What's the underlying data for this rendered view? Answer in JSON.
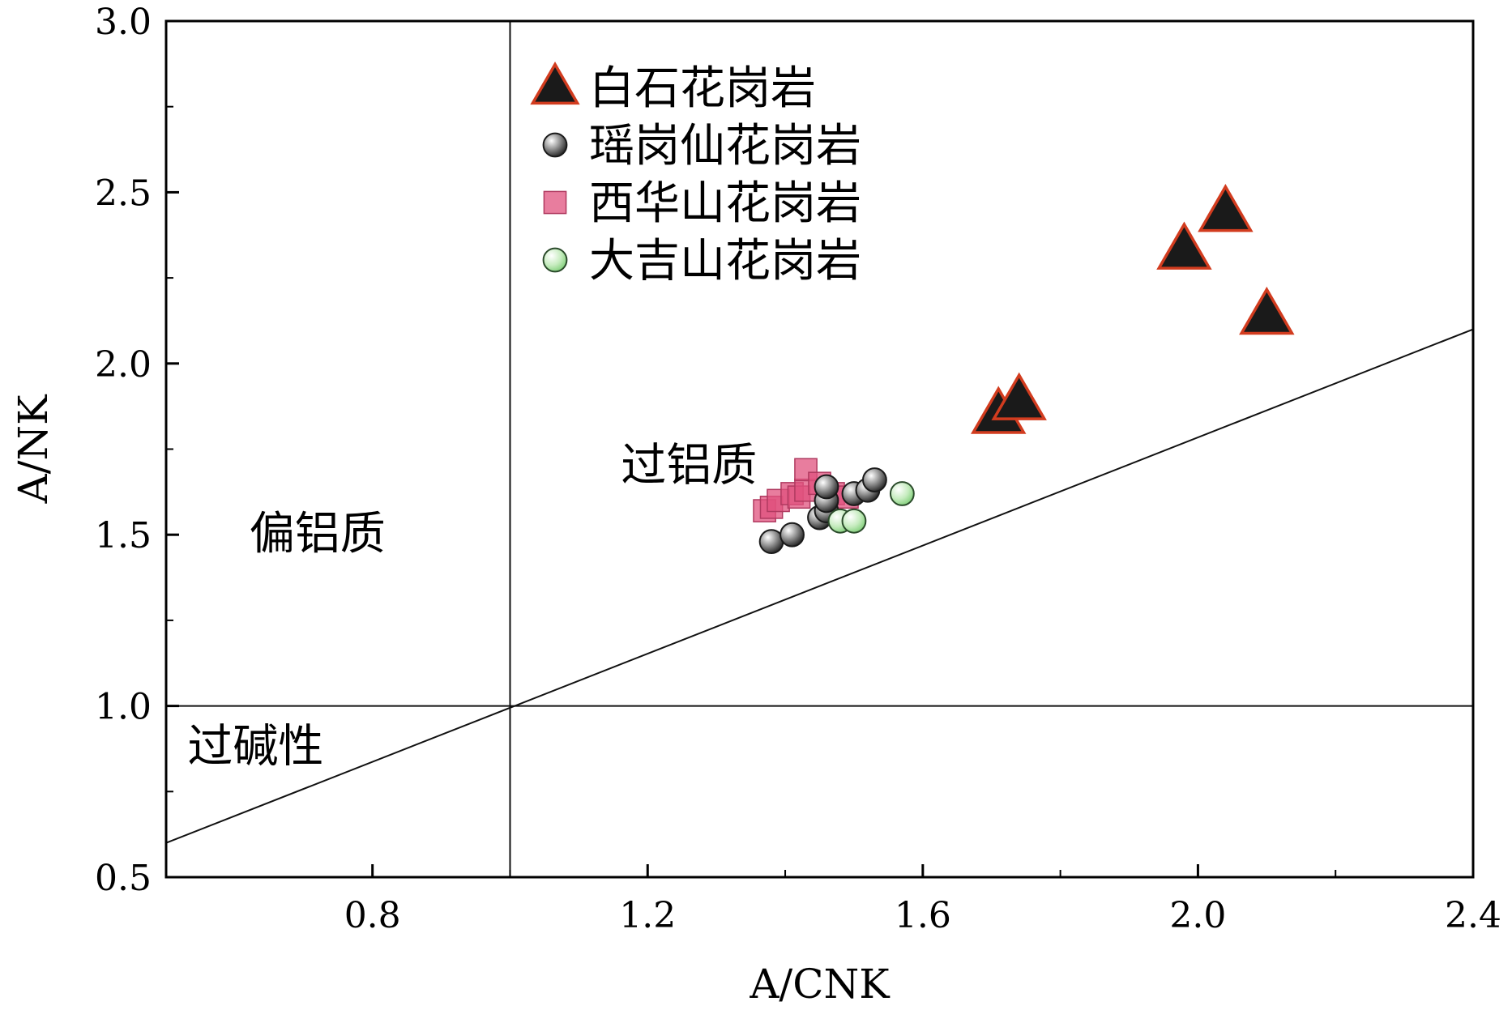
{
  "chart_data": {
    "type": "scatter",
    "title": "",
    "xlabel": "A/CNK",
    "ylabel": "A/NK",
    "xlim": [
      0.5,
      2.4
    ],
    "ylim": [
      0.5,
      3.0
    ],
    "x_ticks": [
      0.8,
      1.2,
      1.6,
      2.0,
      2.4
    ],
    "x_tick_labels": [
      "0.8",
      "1.2",
      "1.6",
      "2.0",
      "2.4"
    ],
    "y_ticks": [
      0.5,
      1.0,
      1.5,
      2.0,
      2.5,
      3.0
    ],
    "y_tick_labels": [
      "0.5",
      "1.0",
      "1.5",
      "2.0",
      "2.5",
      "3.0"
    ],
    "x_minor_ticks": [
      1.0,
      1.4,
      1.8,
      2.2
    ],
    "y_minor_ticks": [
      0.75,
      1.25,
      1.75,
      2.25,
      2.75
    ],
    "grid": false,
    "legend_position": "top-left, inside plot to the right of A/CNK = 1.0",
    "reference_lines": [
      {
        "orientation": "vertical",
        "x": 1.0
      },
      {
        "orientation": "horizontal",
        "y": 1.0
      },
      {
        "orientation": "diagonal",
        "points": [
          [
            0.5,
            0.6
          ],
          [
            2.4,
            2.1
          ]
        ]
      }
    ],
    "regions": [
      {
        "label": "偏铝质",
        "x": 0.72,
        "y": 1.5
      },
      {
        "label": "过铝质",
        "x": 1.26,
        "y": 1.7
      },
      {
        "label": "过碱性",
        "x": 0.63,
        "y": 0.88
      }
    ],
    "series": [
      {
        "name": "白石花岗岩",
        "marker": "triangle",
        "fill": "#1a1a1a",
        "stroke": "#d23c1f",
        "points": [
          [
            1.71,
            1.85
          ],
          [
            1.74,
            1.89
          ],
          [
            1.98,
            2.33
          ],
          [
            2.04,
            2.44
          ],
          [
            2.1,
            2.14
          ]
        ]
      },
      {
        "name": "瑶岗仙花岗岩",
        "marker": "circle",
        "fill": "#555555",
        "stroke": "#1a1a1a",
        "points": [
          [
            1.38,
            1.48
          ],
          [
            1.41,
            1.5
          ],
          [
            1.45,
            1.55
          ],
          [
            1.46,
            1.57
          ],
          [
            1.46,
            1.6
          ],
          [
            1.46,
            1.64
          ],
          [
            1.5,
            1.62
          ],
          [
            1.52,
            1.63
          ],
          [
            1.53,
            1.66
          ]
        ]
      },
      {
        "name": "西华山花岗岩",
        "marker": "square",
        "fill": "#e0527d",
        "stroke": "#b03a60",
        "points": [
          [
            1.37,
            1.57
          ],
          [
            1.38,
            1.58
          ],
          [
            1.39,
            1.6
          ],
          [
            1.41,
            1.62
          ],
          [
            1.42,
            1.61
          ],
          [
            1.43,
            1.63
          ],
          [
            1.43,
            1.69
          ],
          [
            1.45,
            1.65
          ],
          [
            1.47,
            1.62
          ],
          [
            1.49,
            1.61
          ]
        ]
      },
      {
        "name": "大吉山花岗岩",
        "marker": "circle",
        "fill": "#b9e6b0",
        "stroke": "#2a4a2a",
        "points": [
          [
            1.48,
            1.54
          ],
          [
            1.5,
            1.54
          ],
          [
            1.57,
            1.62
          ]
        ]
      }
    ]
  }
}
